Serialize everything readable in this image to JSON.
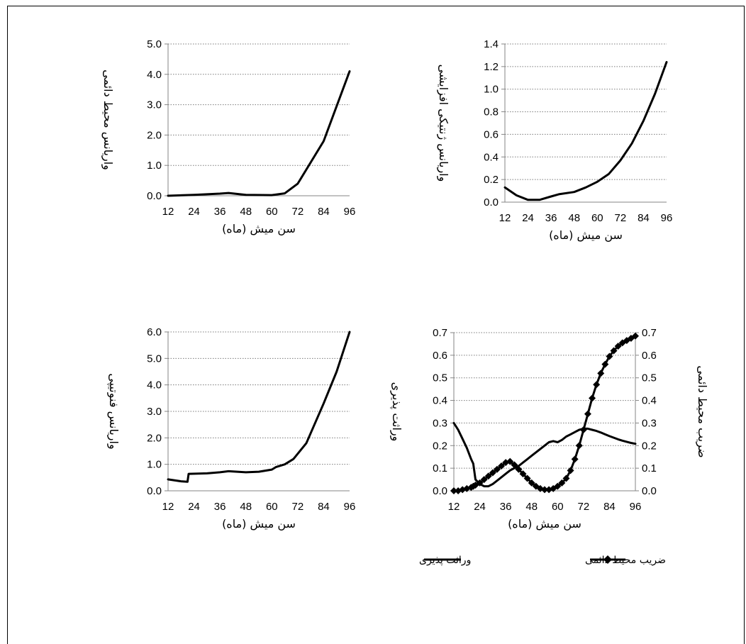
{
  "chart_data": [
    {
      "type": "line",
      "x": [
        12,
        24,
        36,
        40,
        48,
        60,
        66,
        72,
        84,
        96
      ],
      "series": [
        {
          "values": [
            0.0,
            0.03,
            0.07,
            0.09,
            0.03,
            0.02,
            0.08,
            0.4,
            1.8,
            4.1
          ]
        }
      ],
      "xticks": [
        12,
        24,
        36,
        48,
        60,
        72,
        84,
        96
      ],
      "yticks": [
        "0.0",
        "1.0",
        "2.0",
        "3.0",
        "4.0",
        "5.0"
      ],
      "xlabel": "سن میش (ماه)",
      "ylabel": "واریانس محیط دائمی",
      "xlim": [
        12,
        96
      ],
      "ylim": [
        0,
        5
      ],
      "grid": "horizontal-dotted"
    },
    {
      "type": "line",
      "x": [
        12,
        18,
        24,
        30,
        36,
        40,
        48,
        54,
        60,
        66,
        72,
        78,
        84,
        90,
        96
      ],
      "series": [
        {
          "values": [
            0.13,
            0.06,
            0.02,
            0.02,
            0.05,
            0.07,
            0.09,
            0.13,
            0.18,
            0.25,
            0.37,
            0.52,
            0.72,
            0.96,
            1.24
          ]
        }
      ],
      "xticks": [
        12,
        24,
        36,
        48,
        60,
        72,
        84,
        96
      ],
      "yticks": [
        "0.0",
        "0.2",
        "0.4",
        "0.6",
        "0.8",
        "1.0",
        "1.2",
        "1.4"
      ],
      "xlabel": "سن میش (ماه)",
      "ylabel": "واریانس ژنتیکی افزایشی",
      "xlim": [
        12,
        96
      ],
      "ylim": [
        0,
        1.4
      ],
      "grid": "horizontal-dotted"
    },
    {
      "type": "line",
      "x": [
        12,
        18,
        21,
        21.5,
        30,
        36,
        40,
        48,
        54,
        60,
        62,
        66,
        70,
        76,
        84,
        90,
        96
      ],
      "series": [
        {
          "values": [
            0.43,
            0.36,
            0.34,
            0.64,
            0.66,
            0.7,
            0.74,
            0.7,
            0.72,
            0.8,
            0.9,
            1.0,
            1.2,
            1.8,
            3.3,
            4.5,
            6.0
          ]
        }
      ],
      "xticks": [
        12,
        24,
        36,
        48,
        60,
        72,
        84,
        96
      ],
      "yticks": [
        "0.0",
        "1.0",
        "2.0",
        "3.0",
        "4.0",
        "5.0",
        "6.0"
      ],
      "xlabel": "سن میش (ماه)",
      "ylabel": "واریانس فنوتیپی",
      "xlim": [
        12,
        96
      ],
      "ylim": [
        0,
        6
      ],
      "grid": "horizontal-dotted"
    },
    {
      "type": "line",
      "x": [
        12,
        14,
        16,
        18,
        20,
        21,
        22,
        24,
        26,
        28,
        30,
        32,
        34,
        36,
        38,
        40,
        42,
        44,
        46,
        48,
        50,
        52,
        54,
        56,
        58,
        60,
        62,
        64,
        66,
        68,
        70,
        72,
        74,
        76,
        78,
        80,
        82,
        84,
        86,
        88,
        90,
        92,
        94,
        96
      ],
      "series": [
        {
          "name": "وراثت پذیری",
          "marker": "none",
          "values": [
            0.3,
            0.27,
            0.23,
            0.19,
            0.14,
            0.12,
            0.05,
            0.03,
            0.02,
            0.02,
            0.03,
            0.045,
            0.06,
            0.075,
            0.09,
            0.1,
            0.11,
            0.125,
            0.14,
            0.155,
            0.17,
            0.185,
            0.2,
            0.215,
            0.22,
            0.215,
            0.225,
            0.24,
            0.25,
            0.26,
            0.27,
            0.275,
            0.275,
            0.27,
            0.265,
            0.258,
            0.25,
            0.242,
            0.235,
            0.228,
            0.222,
            0.217,
            0.212,
            0.208
          ]
        },
        {
          "name": "ضریب محیط دائمی",
          "marker": "diamond",
          "values": [
            0.0,
            0.0,
            0.005,
            0.01,
            0.015,
            0.02,
            0.025,
            0.035,
            0.05,
            0.065,
            0.08,
            0.095,
            0.11,
            0.125,
            0.13,
            0.115,
            0.095,
            0.075,
            0.055,
            0.035,
            0.02,
            0.01,
            0.005,
            0.005,
            0.01,
            0.02,
            0.035,
            0.055,
            0.09,
            0.14,
            0.2,
            0.27,
            0.34,
            0.41,
            0.47,
            0.52,
            0.56,
            0.595,
            0.62,
            0.64,
            0.655,
            0.665,
            0.675,
            0.685
          ]
        }
      ],
      "xticks": [
        12,
        24,
        36,
        48,
        60,
        72,
        84,
        96
      ],
      "yticks": [
        "0.0",
        "0.1",
        "0.2",
        "0.3",
        "0.4",
        "0.5",
        "0.6",
        "0.7"
      ],
      "y2ticks": [
        "0.0",
        "0.1",
        "0.2",
        "0.3",
        "0.4",
        "0.5",
        "0.6",
        "0.7"
      ],
      "xlabel": "سن میش (ماه)",
      "ylabel": "وراثت پذیری",
      "y2label": "ضریب محیط دائمی",
      "xlim": [
        12,
        96
      ],
      "ylim": [
        0,
        0.7
      ],
      "y2lim": [
        0,
        0.7
      ],
      "grid": "horizontal-dotted",
      "legend": "bottom"
    }
  ]
}
